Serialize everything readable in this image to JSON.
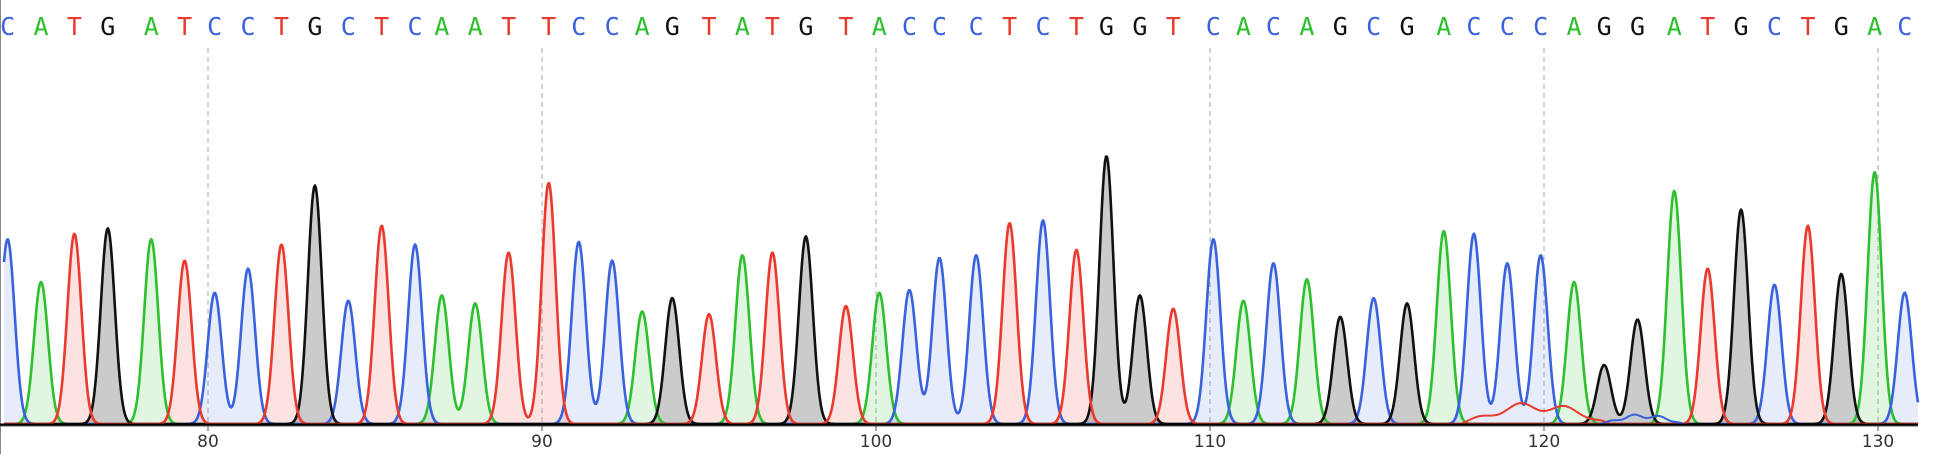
{
  "chart_data": {
    "type": "line",
    "colors": {
      "A": "#2ec02e",
      "C": "#3a62dd",
      "G": "#111111",
      "T": "#e83a2e"
    },
    "position_axis": {
      "ticks": [
        80,
        90,
        100,
        110,
        120,
        130
      ],
      "range": [
        73.8,
        131.3
      ]
    },
    "bases": [
      {
        "pos": 74.0,
        "base": "C",
        "h": 0.69
      },
      {
        "pos": 75.0,
        "base": "A",
        "h": 0.53
      },
      {
        "pos": 76.0,
        "base": "T",
        "h": 0.71
      },
      {
        "pos": 77.0,
        "base": "G",
        "h": 0.73
      },
      {
        "pos": 78.3,
        "base": "A",
        "h": 0.69
      },
      {
        "pos": 79.3,
        "base": "T",
        "h": 0.61
      },
      {
        "pos": 80.2,
        "base": "C",
        "h": 0.49
      },
      {
        "pos": 81.2,
        "base": "C",
        "h": 0.58
      },
      {
        "pos": 82.2,
        "base": "T",
        "h": 0.67
      },
      {
        "pos": 83.2,
        "base": "G",
        "h": 0.89
      },
      {
        "pos": 84.2,
        "base": "C",
        "h": 0.46
      },
      {
        "pos": 85.2,
        "base": "T",
        "h": 0.74
      },
      {
        "pos": 86.2,
        "base": "C",
        "h": 0.67
      },
      {
        "pos": 87.0,
        "base": "A",
        "h": 0.48
      },
      {
        "pos": 88.0,
        "base": "A",
        "h": 0.45
      },
      {
        "pos": 89.0,
        "base": "T",
        "h": 0.64
      },
      {
        "pos": 90.2,
        "base": "T",
        "h": 0.9
      },
      {
        "pos": 91.1,
        "base": "C",
        "h": 0.68
      },
      {
        "pos": 92.1,
        "base": "C",
        "h": 0.61
      },
      {
        "pos": 93.0,
        "base": "A",
        "h": 0.42
      },
      {
        "pos": 93.9,
        "base": "G",
        "h": 0.47
      },
      {
        "pos": 95.0,
        "base": "T",
        "h": 0.41
      },
      {
        "pos": 96.0,
        "base": "A",
        "h": 0.63
      },
      {
        "pos": 96.9,
        "base": "T",
        "h": 0.64
      },
      {
        "pos": 97.9,
        "base": "G",
        "h": 0.7
      },
      {
        "pos": 99.1,
        "base": "T",
        "h": 0.44
      },
      {
        "pos": 100.1,
        "base": "A",
        "h": 0.49
      },
      {
        "pos": 101.0,
        "base": "C",
        "h": 0.5
      },
      {
        "pos": 101.9,
        "base": "C",
        "h": 0.62
      },
      {
        "pos": 103.0,
        "base": "C",
        "h": 0.63
      },
      {
        "pos": 104.0,
        "base": "T",
        "h": 0.75
      },
      {
        "pos": 105.0,
        "base": "C",
        "h": 0.76
      },
      {
        "pos": 106.0,
        "base": "T",
        "h": 0.65
      },
      {
        "pos": 106.9,
        "base": "G",
        "h": 1.0
      },
      {
        "pos": 107.9,
        "base": "G",
        "h": 0.48
      },
      {
        "pos": 108.9,
        "base": "T",
        "h": 0.43
      },
      {
        "pos": 110.1,
        "base": "C",
        "h": 0.69
      },
      {
        "pos": 111.0,
        "base": "A",
        "h": 0.46
      },
      {
        "pos": 111.9,
        "base": "C",
        "h": 0.6
      },
      {
        "pos": 112.9,
        "base": "A",
        "h": 0.54
      },
      {
        "pos": 113.9,
        "base": "G",
        "h": 0.4
      },
      {
        "pos": 114.9,
        "base": "C",
        "h": 0.47
      },
      {
        "pos": 115.9,
        "base": "G",
        "h": 0.45
      },
      {
        "pos": 117.0,
        "base": "A",
        "h": 0.72
      },
      {
        "pos": 117.9,
        "base": "C",
        "h": 0.71
      },
      {
        "pos": 118.9,
        "base": "C",
        "h": 0.6
      },
      {
        "pos": 119.9,
        "base": "C",
        "h": 0.63
      },
      {
        "pos": 120.9,
        "base": "A",
        "h": 0.53
      },
      {
        "pos": 121.8,
        "base": "G",
        "h": 0.22
      },
      {
        "pos": 122.8,
        "base": "G",
        "h": 0.39
      },
      {
        "pos": 123.9,
        "base": "A",
        "h": 0.87
      },
      {
        "pos": 124.9,
        "base": "T",
        "h": 0.58
      },
      {
        "pos": 125.9,
        "base": "G",
        "h": 0.8
      },
      {
        "pos": 126.9,
        "base": "C",
        "h": 0.52
      },
      {
        "pos": 127.9,
        "base": "T",
        "h": 0.74
      },
      {
        "pos": 128.9,
        "base": "G",
        "h": 0.56
      },
      {
        "pos": 129.9,
        "base": "A",
        "h": 0.94
      },
      {
        "pos": 130.8,
        "base": "C",
        "h": 0.49
      }
    ]
  }
}
